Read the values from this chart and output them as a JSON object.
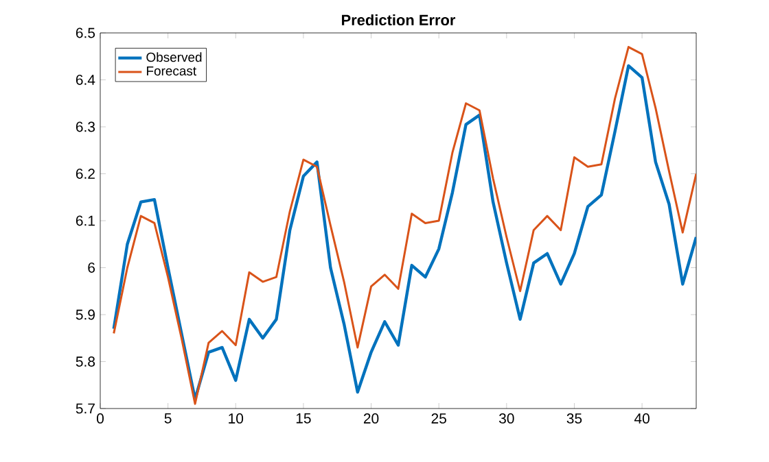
{
  "chart_data": {
    "type": "line",
    "title": "Prediction Error",
    "x": [
      1,
      2,
      3,
      4,
      5,
      6,
      7,
      8,
      9,
      10,
      11,
      12,
      13,
      14,
      15,
      16,
      17,
      18,
      19,
      20,
      21,
      22,
      23,
      24,
      25,
      26,
      27,
      28,
      29,
      30,
      31,
      32,
      33,
      34,
      35,
      36,
      37,
      38,
      39,
      40,
      41,
      42,
      43,
      44
    ],
    "series": [
      {
        "name": "Observed",
        "color": "#0072bd",
        "values": [
          5.87,
          6.05,
          6.14,
          6.145,
          6.0,
          5.86,
          5.72,
          5.82,
          5.83,
          5.76,
          5.89,
          5.85,
          5.89,
          6.08,
          6.195,
          6.225,
          6.0,
          5.88,
          5.735,
          5.82,
          5.885,
          5.835,
          6.005,
          5.98,
          6.04,
          6.16,
          6.305,
          6.325,
          6.14,
          6.01,
          5.89,
          6.01,
          6.03,
          5.965,
          6.03,
          6.13,
          6.155,
          6.29,
          6.43,
          6.405,
          6.225,
          6.135,
          5.965,
          6.065
        ]
      },
      {
        "name": "Forecast",
        "color": "#d95319",
        "values": [
          5.86,
          6.0,
          6.11,
          6.095,
          5.98,
          5.85,
          5.71,
          5.84,
          5.865,
          5.835,
          5.99,
          5.97,
          5.98,
          6.12,
          6.23,
          6.215,
          6.09,
          5.97,
          5.83,
          5.96,
          5.985,
          5.955,
          6.115,
          6.095,
          6.1,
          6.245,
          6.35,
          6.335,
          6.19,
          6.065,
          5.95,
          6.08,
          6.11,
          6.08,
          6.235,
          6.215,
          6.22,
          6.36,
          6.47,
          6.455,
          6.34,
          6.205,
          6.075,
          6.2
        ]
      }
    ],
    "xlim": [
      0,
      44
    ],
    "xticks": [
      0,
      5,
      10,
      15,
      20,
      25,
      30,
      35,
      40
    ],
    "ylim": [
      5.7,
      6.5
    ],
    "yticks": [
      {
        "value": 5.7,
        "label": "5.7"
      },
      {
        "value": 5.8,
        "label": "5.8"
      },
      {
        "value": 5.9,
        "label": "5.9"
      },
      {
        "value": 6.0,
        "label": "6"
      },
      {
        "value": 6.1,
        "label": "6.1"
      },
      {
        "value": 6.2,
        "label": "6.2"
      },
      {
        "value": 6.3,
        "label": "6.3"
      },
      {
        "value": 6.4,
        "label": "6.4"
      },
      {
        "value": 6.5,
        "label": "6.5"
      }
    ],
    "legend": "top left",
    "grid": false,
    "marker": "none",
    "line_style": "solid"
  }
}
